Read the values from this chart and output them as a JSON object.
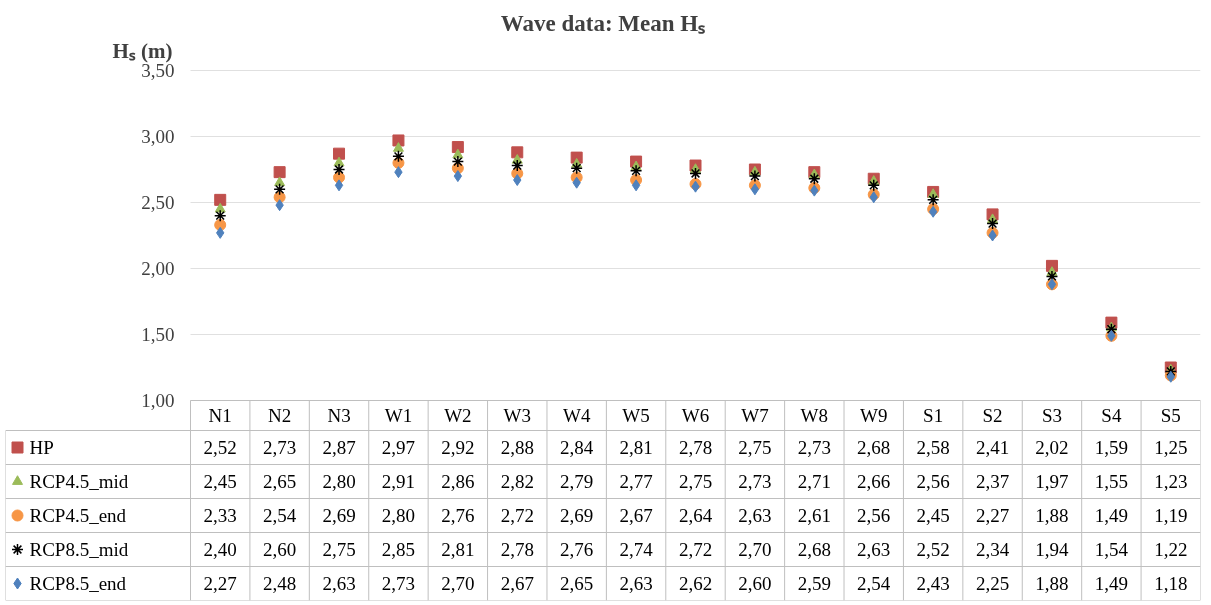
{
  "chart_data": {
    "type": "scatter",
    "title": "Wave data: Mean Hₛ",
    "ylabel": "Hₛ (m)",
    "categories": [
      "N1",
      "N2",
      "N3",
      "W1",
      "W2",
      "W3",
      "W4",
      "W5",
      "W6",
      "W7",
      "W8",
      "W9",
      "S1",
      "S2",
      "S3",
      "S4",
      "S5"
    ],
    "ylim": [
      1,
      3.5
    ],
    "yticks": [
      {
        "value": 1,
        "label": "1,00"
      },
      {
        "value": 1.5,
        "label": "1,50"
      },
      {
        "value": 2,
        "label": "2,00"
      },
      {
        "value": 2.5,
        "label": "2,50"
      },
      {
        "value": 3,
        "label": "3,00"
      },
      {
        "value": 3.5,
        "label": "3,50"
      }
    ],
    "grid": "y",
    "legend": "bottom",
    "series": [
      {
        "name": "HP",
        "color": "#c0504d",
        "marker": "square",
        "values": [
          2.52,
          2.73,
          2.87,
          2.97,
          2.92,
          2.88,
          2.84,
          2.81,
          2.78,
          2.75,
          2.73,
          2.68,
          2.58,
          2.41,
          2.02,
          1.59,
          1.25
        ],
        "value_labels": [
          "2,52",
          "2,73",
          "2,87",
          "2,97",
          "2,92",
          "2,88",
          "2,84",
          "2,81",
          "2,78",
          "2,75",
          "2,73",
          "2,68",
          "2,58",
          "2,41",
          "2,02",
          "1,59",
          "1,25"
        ]
      },
      {
        "name": "RCP4.5_mid",
        "color": "#9bbb59",
        "marker": "triangle",
        "values": [
          2.45,
          2.65,
          2.8,
          2.91,
          2.86,
          2.82,
          2.79,
          2.77,
          2.75,
          2.73,
          2.71,
          2.66,
          2.56,
          2.37,
          1.97,
          1.55,
          1.23
        ],
        "value_labels": [
          "2,45",
          "2,65",
          "2,80",
          "2,91",
          "2,86",
          "2,82",
          "2,79",
          "2,77",
          "2,75",
          "2,73",
          "2,71",
          "2,66",
          "2,56",
          "2,37",
          "1,97",
          "1,55",
          "1,23"
        ]
      },
      {
        "name": "RCP4.5_end",
        "color": "#f79646",
        "marker": "circle",
        "values": [
          2.33,
          2.54,
          2.69,
          2.8,
          2.76,
          2.72,
          2.69,
          2.67,
          2.64,
          2.63,
          2.61,
          2.56,
          2.45,
          2.27,
          1.88,
          1.49,
          1.19
        ],
        "value_labels": [
          "2,33",
          "2,54",
          "2,69",
          "2,80",
          "2,76",
          "2,72",
          "2,69",
          "2,67",
          "2,64",
          "2,63",
          "2,61",
          "2,56",
          "2,45",
          "2,27",
          "1,88",
          "1,49",
          "1,19"
        ]
      },
      {
        "name": "RCP8.5_mid",
        "color": "#000000",
        "marker": "cross",
        "values": [
          2.4,
          2.6,
          2.75,
          2.85,
          2.81,
          2.78,
          2.76,
          2.74,
          2.72,
          2.7,
          2.68,
          2.63,
          2.52,
          2.34,
          1.94,
          1.54,
          1.22
        ],
        "value_labels": [
          "2,40",
          "2,60",
          "2,75",
          "2,85",
          "2,81",
          "2,78",
          "2,76",
          "2,74",
          "2,72",
          "2,70",
          "2,68",
          "2,63",
          "2,52",
          "2,34",
          "1,94",
          "1,54",
          "1,22"
        ]
      },
      {
        "name": "RCP8.5_end",
        "color": "#4f81bd",
        "marker": "diamond",
        "values": [
          2.27,
          2.48,
          2.63,
          2.73,
          2.7,
          2.67,
          2.65,
          2.63,
          2.62,
          2.6,
          2.59,
          2.54,
          2.43,
          2.25,
          1.88,
          1.49,
          1.18
        ],
        "value_labels": [
          "2,27",
          "2,48",
          "2,63",
          "2,73",
          "2,70",
          "2,67",
          "2,65",
          "2,63",
          "2,62",
          "2,60",
          "2,59",
          "2,54",
          "2,43",
          "2,25",
          "1,88",
          "1,49",
          "1,18"
        ]
      }
    ]
  }
}
